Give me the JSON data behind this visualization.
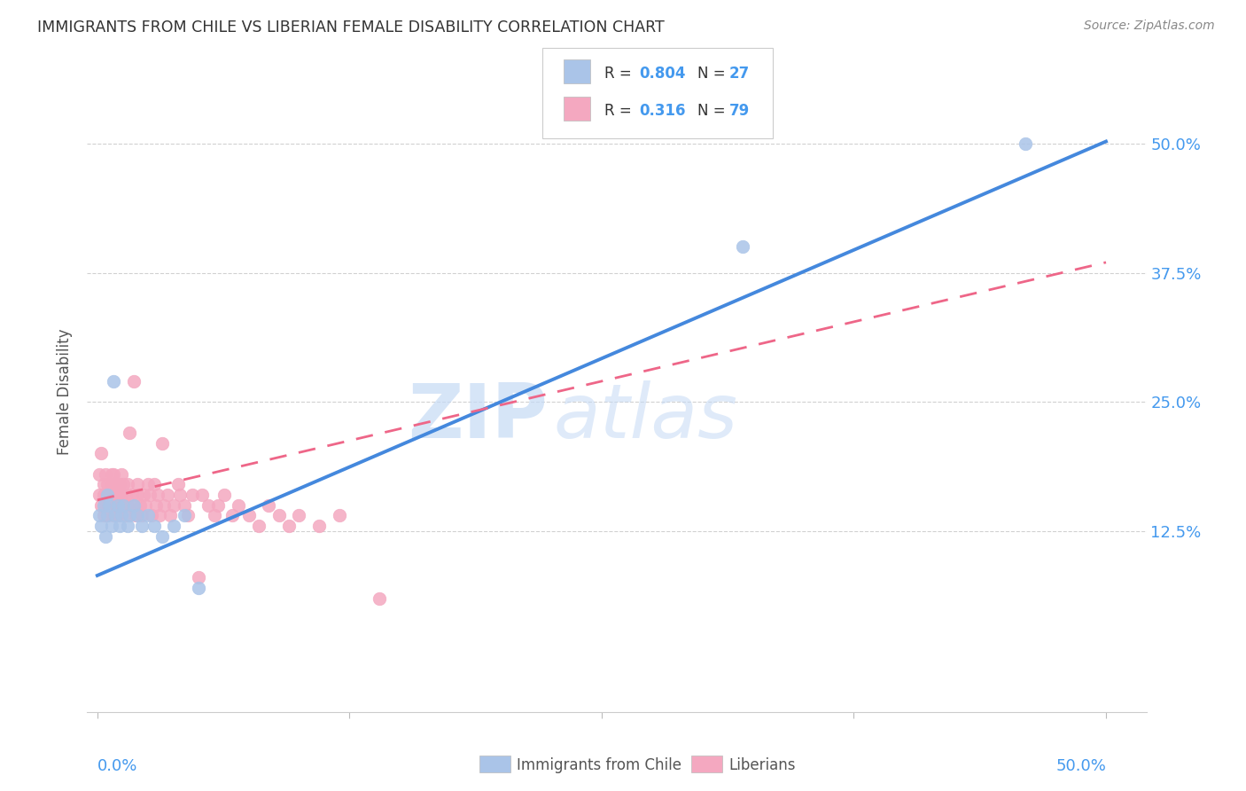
{
  "title": "IMMIGRANTS FROM CHILE VS LIBERIAN FEMALE DISABILITY CORRELATION CHART",
  "source": "Source: ZipAtlas.com",
  "ylabel": "Female Disability",
  "ytick_labels": [
    "12.5%",
    "25.0%",
    "37.5%",
    "50.0%"
  ],
  "ytick_values": [
    0.125,
    0.25,
    0.375,
    0.5
  ],
  "xtick_values": [
    0.0,
    0.125,
    0.25,
    0.375,
    0.5
  ],
  "xlim": [
    -0.005,
    0.52
  ],
  "ylim": [
    -0.05,
    0.57
  ],
  "watermark_zip": "ZIP",
  "watermark_atlas": "atlas",
  "series1_label": "Immigrants from Chile",
  "series1_R": "0.804",
  "series1_N": "27",
  "series1_color": "#aac4e8",
  "series1_line_color": "#4488dd",
  "series2_label": "Liberians",
  "series2_R": "0.316",
  "series2_N": "79",
  "series2_color": "#f4a8c0",
  "series2_line_color": "#ee6688",
  "background_color": "#ffffff",
  "grid_color": "#cccccc",
  "title_color": "#333333",
  "axis_label_color": "#4499ee",
  "chile_x": [
    0.001,
    0.002,
    0.003,
    0.004,
    0.005,
    0.005,
    0.006,
    0.007,
    0.008,
    0.009,
    0.01,
    0.011,
    0.012,
    0.013,
    0.015,
    0.016,
    0.018,
    0.02,
    0.022,
    0.025,
    0.028,
    0.032,
    0.038,
    0.043,
    0.05,
    0.32,
    0.46
  ],
  "chile_y": [
    0.14,
    0.13,
    0.15,
    0.12,
    0.16,
    0.14,
    0.15,
    0.13,
    0.27,
    0.14,
    0.15,
    0.13,
    0.14,
    0.15,
    0.13,
    0.14,
    0.15,
    0.14,
    0.13,
    0.14,
    0.13,
    0.12,
    0.13,
    0.14,
    0.07,
    0.4,
    0.5
  ],
  "liberia_x": [
    0.001,
    0.001,
    0.002,
    0.002,
    0.003,
    0.003,
    0.003,
    0.004,
    0.004,
    0.005,
    0.005,
    0.005,
    0.006,
    0.006,
    0.007,
    0.007,
    0.007,
    0.008,
    0.008,
    0.008,
    0.009,
    0.009,
    0.01,
    0.01,
    0.011,
    0.011,
    0.012,
    0.012,
    0.013,
    0.013,
    0.014,
    0.014,
    0.015,
    0.015,
    0.016,
    0.017,
    0.018,
    0.018,
    0.019,
    0.02,
    0.02,
    0.021,
    0.022,
    0.023,
    0.024,
    0.025,
    0.026,
    0.027,
    0.028,
    0.029,
    0.03,
    0.031,
    0.032,
    0.033,
    0.035,
    0.036,
    0.038,
    0.04,
    0.041,
    0.043,
    0.045,
    0.047,
    0.05,
    0.052,
    0.055,
    0.058,
    0.06,
    0.063,
    0.067,
    0.07,
    0.075,
    0.08,
    0.085,
    0.09,
    0.095,
    0.1,
    0.11,
    0.12,
    0.14
  ],
  "liberia_y": [
    0.16,
    0.18,
    0.2,
    0.15,
    0.17,
    0.14,
    0.16,
    0.18,
    0.15,
    0.16,
    0.14,
    0.17,
    0.15,
    0.16,
    0.18,
    0.15,
    0.17,
    0.16,
    0.14,
    0.18,
    0.15,
    0.17,
    0.16,
    0.14,
    0.17,
    0.15,
    0.16,
    0.18,
    0.15,
    0.17,
    0.16,
    0.14,
    0.17,
    0.15,
    0.22,
    0.16,
    0.15,
    0.27,
    0.14,
    0.17,
    0.16,
    0.15,
    0.14,
    0.16,
    0.15,
    0.17,
    0.16,
    0.14,
    0.17,
    0.15,
    0.16,
    0.14,
    0.21,
    0.15,
    0.16,
    0.14,
    0.15,
    0.17,
    0.16,
    0.15,
    0.14,
    0.16,
    0.08,
    0.16,
    0.15,
    0.14,
    0.15,
    0.16,
    0.14,
    0.15,
    0.14,
    0.13,
    0.15,
    0.14,
    0.13,
    0.14,
    0.13,
    0.14,
    0.06
  ],
  "chile_line_x0": 0.0,
  "chile_line_x1": 0.5,
  "chile_line_y0": 0.082,
  "chile_line_y1": 0.502,
  "liberia_line_x0": 0.0,
  "liberia_line_x1": 0.5,
  "liberia_line_y0": 0.155,
  "liberia_line_y1": 0.385
}
